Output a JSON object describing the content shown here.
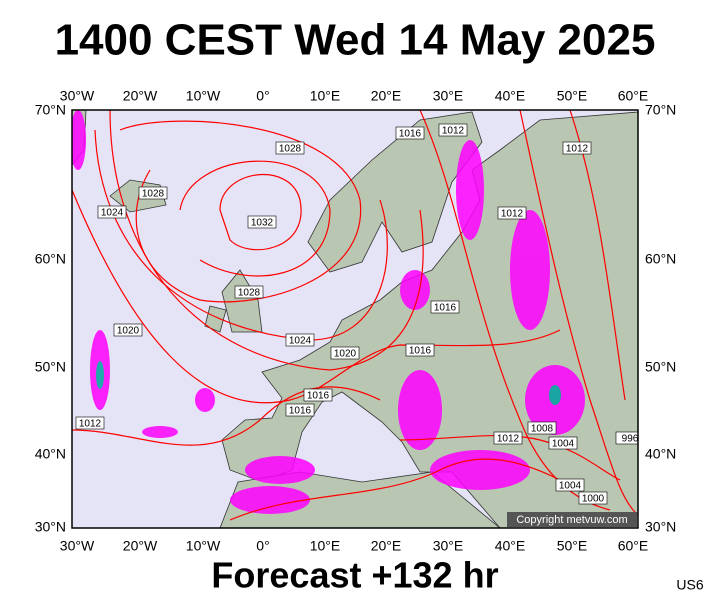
{
  "header": {
    "title": "1400 CEST Wed 14 May 2025"
  },
  "map": {
    "longitude_labels": [
      "30°W",
      "20°W",
      "10°W",
      "0°",
      "10°E",
      "20°E",
      "30°E",
      "40°E",
      "50°E",
      "60°E"
    ],
    "latitude_labels": [
      "70°N",
      "60°N",
      "50°N",
      "40°N",
      "30°N"
    ],
    "isobar_labels": [
      "1028",
      "1032",
      "1028",
      "1024",
      "1028",
      "1020",
      "1012",
      "1024",
      "1020",
      "1016",
      "1016",
      "1016",
      "1012",
      "1016",
      "1012",
      "1012",
      "1008",
      "1004",
      "1004",
      "1000",
      "996",
      "1016",
      "1012"
    ],
    "copyright": "Copyright metvuw.com"
  },
  "footer": {
    "forecast": "Forecast +132 hr",
    "code": "US6"
  }
}
